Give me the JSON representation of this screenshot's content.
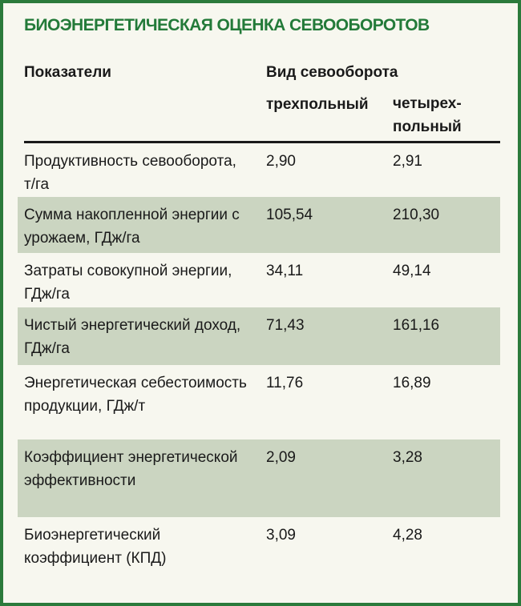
{
  "header": {
    "title": "БИОЭНЕРГЕТИЧЕСКАЯ ОЦЕНКА СЕВООБОРОТОВ"
  },
  "table": {
    "group": "Вид севооборота",
    "columns": [
      "Показатели",
      "трехпольный",
      "четырех-\nпольный"
    ],
    "rows": [
      [
        "Продуктивность севооборота, т/га",
        "2,90",
        "2,91"
      ],
      [
        "Сумма накопленной энергии с урожаем, ГДж/га",
        "105,54",
        "210,30"
      ],
      [
        "Затраты совокупной энергии, ГДж/га",
        "34,11",
        "49,14"
      ],
      [
        "Чистый энергетический доход, ГДж/га",
        "71,43",
        "161,16"
      ],
      [
        "Энергетическая себестоимость продукции, ГДж/т",
        "11,76",
        "16,89"
      ],
      [
        "Коэффициент энергетической эффективности",
        "2,09",
        "3,28"
      ],
      [
        "Биоэнергетический коэффициент (КПД)",
        "3,09",
        "4,28"
      ]
    ]
  }
}
